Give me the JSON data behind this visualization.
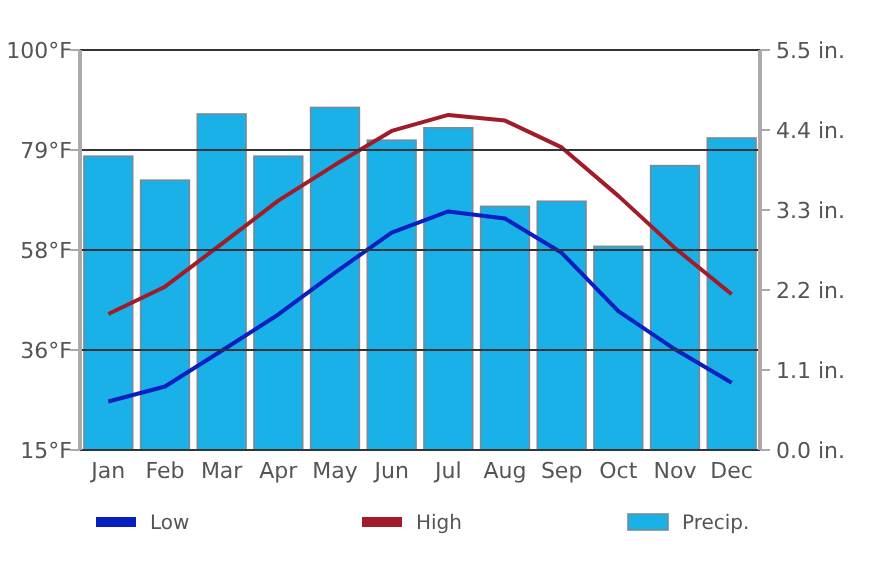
{
  "chart_data": {
    "type": "bar",
    "categories": [
      "Jan",
      "Feb",
      "Mar",
      "Apr",
      "May",
      "Jun",
      "Jul",
      "Aug",
      "Sep",
      "Oct",
      "Nov",
      "Dec"
    ],
    "series": [
      {
        "name": "Low",
        "type": "line",
        "color": "#0a1fbf",
        "values": [
          25.3,
          28.5,
          36.1,
          43.8,
          52.7,
          61.2,
          65.7,
          64.2,
          56.9,
          44.5,
          36.4,
          29.3
        ]
      },
      {
        "name": "High",
        "type": "line",
        "color": "#a01c28",
        "values": [
          43.9,
          49.7,
          58.8,
          68,
          75.6,
          82.8,
          86.2,
          85,
          79.3,
          69,
          57.9,
          48.1
        ]
      },
      {
        "name": "Precip.",
        "axis": "y2",
        "color": "#1ab0e8",
        "values": [
          4.04,
          3.71,
          4.62,
          4.04,
          4.71,
          4.26,
          4.43,
          3.35,
          3.42,
          2.8,
          3.91,
          4.29
        ]
      }
    ],
    "ylim": [
      15,
      100
    ],
    "yticks": [
      {
        "value": 15,
        "label": "15°F"
      },
      {
        "value": 36.25,
        "label": "36°F"
      },
      {
        "value": 57.5,
        "label": "58°F"
      },
      {
        "value": 78.75,
        "label": "79°F"
      },
      {
        "value": 100,
        "label": "100°F"
      }
    ],
    "y2lim": [
      0,
      5.5
    ],
    "y2ticks": [
      {
        "value": 0,
        "label": "0.0 in."
      },
      {
        "value": 1.1,
        "label": "1.1 in."
      },
      {
        "value": 2.2,
        "label": "2.2 in."
      },
      {
        "value": 3.3,
        "label": "3.3 in."
      },
      {
        "value": 4.4,
        "label": "4.4 in."
      },
      {
        "value": 5.5,
        "label": "5.5 in."
      }
    ],
    "grid": "y",
    "legend": "bottom",
    "line_style": "solid"
  }
}
